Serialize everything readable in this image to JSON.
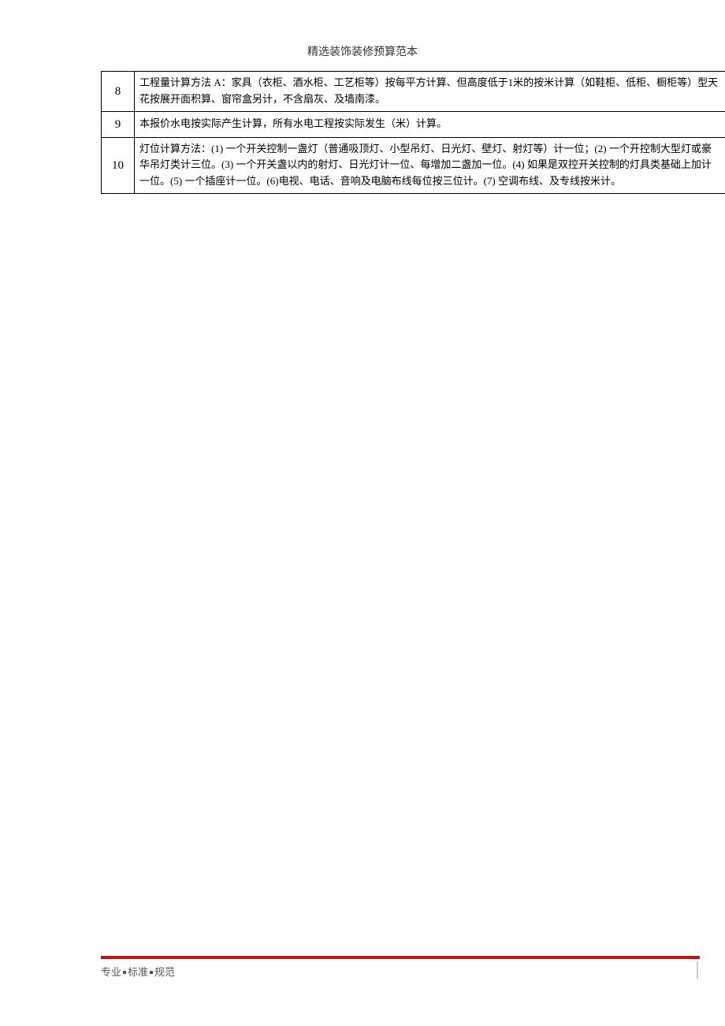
{
  "header": {
    "title": "精选装饰装修预算范本"
  },
  "table": {
    "rows": [
      {
        "num": "8",
        "text": "工程量计算方法 A：家具（衣柜、酒水柜、工艺柜等）按每平方计算、但高度低于1米的按米计算（如鞋柜、低柜、橱柜等）型天花按展开面积算、窗帘盒另计，不含扇灰、及墙南漆。"
      },
      {
        "num": "9",
        "text": "本报价水电按实际产生计算，所有水电工程按实际发生（米）计算。"
      },
      {
        "num": "10",
        "text": "灯位计算方法：(1) 一个开关控制一盏灯（普通吸顶灯、小型吊灯、日光灯、壁灯、射灯等）计一位；(2) 一个开控制大型灯或豪华吊灯类计三位。(3) 一个开关盏以内的射灯、日光灯计一位、每增加二盏加一位。(4) 如果是双控开关控制的灯具类基础上加计一位。(5) 一个插座计一位。(6)电视、电话、音响及电脑布线每位按三位计。(7) 空调布线、及专线按米计。"
      }
    ]
  },
  "footer": {
    "parts": [
      "专业",
      "标准",
      "规范"
    ]
  },
  "colors": {
    "footer_line": "#a02020",
    "text": "#333333",
    "footer_text": "#555555",
    "border": "#000000",
    "background": "#ffffff"
  }
}
